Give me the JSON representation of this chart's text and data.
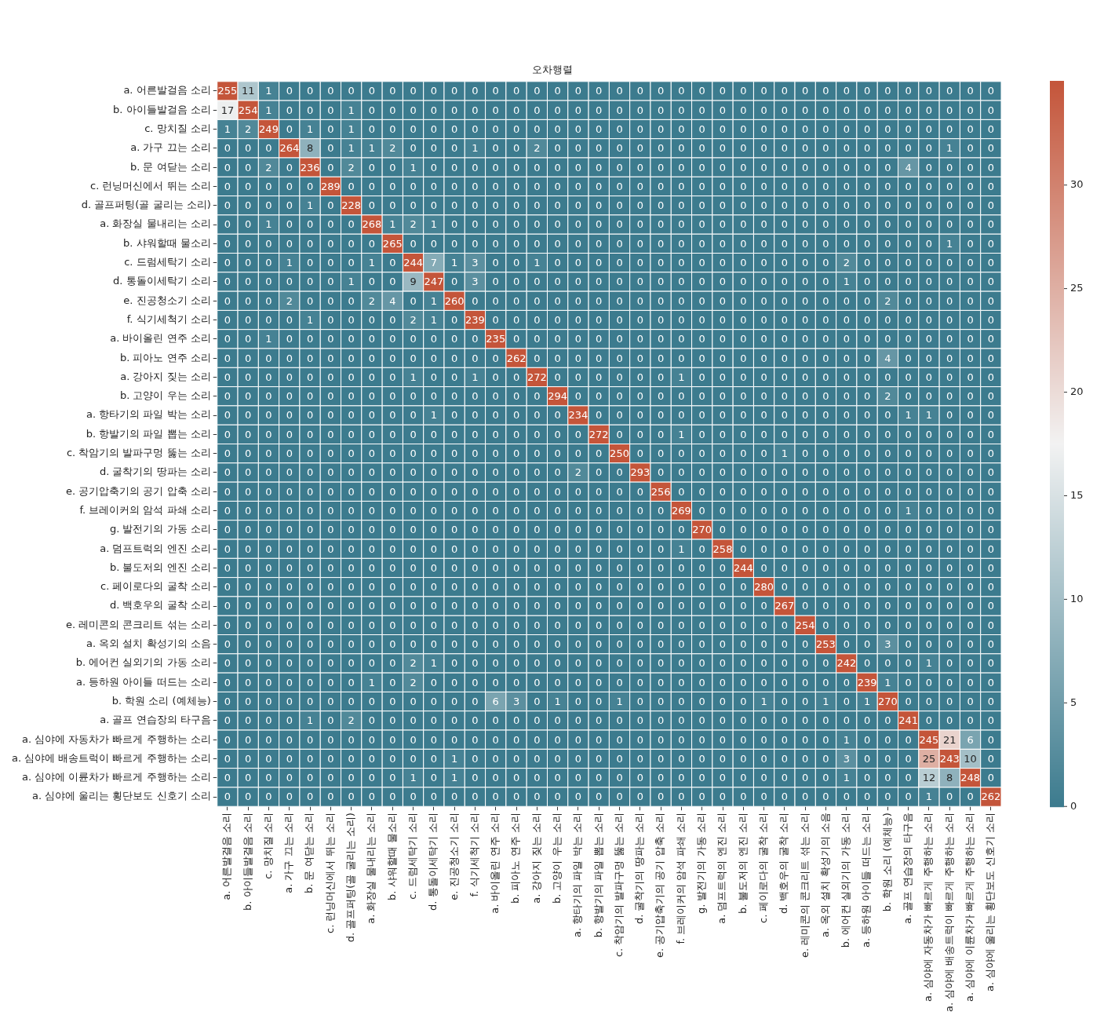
{
  "chart_data": {
    "type": "heatmap",
    "title": "오차행렬",
    "categories": [
      "a. 어른발걸음 소리",
      "b. 아이들발걸음 소리",
      "c. 망치질 소리",
      "a. 가구 끄는 소리",
      "b. 문 여닫는 소리",
      "c. 런닝머신에서 뛰는 소리",
      "d. 골프퍼팅(골 굴리는 소리)",
      "a. 화장실 물내리는 소리",
      "b. 샤워할때 물소리",
      "c. 드럼세탁기 소리",
      "d. 통돌이세탁기 소리",
      "e. 진공청소기 소리",
      "f. 식기세척기 소리",
      "a. 바이올린 연주 소리",
      "b. 피아노 연주 소리",
      "a. 강아지 짖는 소리",
      "b. 고양이 우는 소리",
      "a. 항타기의 파일 박는 소리",
      "b. 항발기의 파일 뽑는 소리",
      "c. 착암기의 발파구멍 뚫는 소리",
      "d. 굴착기의 땅파는 소리",
      "e. 공기압축기의 공기 압축 소리",
      "f. 브레이커의 암석 파쇄 소리",
      "g. 발전기의 가동 소리",
      "a. 덤프트럭의 엔진 소리",
      "b. 불도저의 엔진 소리",
      "c. 페이로다의 굴착 소리",
      "d. 백호우의 굴착 소리",
      "e. 레미콘의 콘크리트 섞는 소리",
      "a. 옥외 설치 확성기의 소음",
      "b. 에어컨 실외기의 가동 소리",
      "a. 등하원 아이들 떠드는 소리",
      "b. 학원 소리 (예체능)",
      "a. 골프 연습장의 타구음",
      "a. 심야에 자동차가 빠르게 주행하는 소리",
      "a. 심야에 배송트럭이 빠르게 주행하는 소리",
      "a. 심야에 이륜차가 빠르게 주행하는 소리",
      "a. 심야에 울리는 횡단보도 신호기 소리"
    ],
    "y_categories": [
      "a. 어른발걸음 소리",
      "b. 아이들발걸음 소리",
      "c. 망치질 소리",
      "a. 가구 끄는 소리",
      "b. 문 여닫는 소리",
      "c. 런닝머신에서 뛰는 소리",
      "d. 골프퍼팅(골 굴리는 소리)",
      "a. 화장실 물내리는 소리",
      "b. 샤워할때 물소리",
      "c. 드럼세탁기 소리",
      "d. 통돌이세탁기 소리",
      "e. 진공청소기 소리",
      "f. 식기세척기 소리",
      "a. 바이올린 연주 소리",
      "b. 피아노 연주 소리",
      "a. 강아지 짖는 소리",
      "b. 고양이 우는 소리",
      "a. 항타기의 파일 박는 소리",
      "b. 항발기의 파일 뽑는 소리",
      "c. 착암기의 발파구멍 뚫는 소리",
      "d. 굴착기의 땅파는 소리",
      "e. 공기압축기의 공기 압축 소리",
      "f. 브레이커의 암석 파쇄 소리",
      "g. 발전기의 가동 소리",
      "a. 덤프트럭의 엔진 소리",
      "b. 불도저의 엔진 소리",
      "c. 페이로다의 굴착 소리",
      "d. 백호우의 굴착 소리",
      "e. 레미콘의 콘크리트 섞는 소리",
      "a. 옥외 설치 확성기의 소음",
      "b. 에어컨 실외기의 가동 소리",
      "a. 등하원 아이들 떠드는 소리",
      "b. 학원 소리 (예체능)",
      "a. 골프 연습장의 타구음",
      "a. 심야에 자동차가 빠르게 주행하는 소리",
      "a. 심야에 배송트럭이 빠르게 주행하는 소리",
      "a. 심야에 이륜차가 빠르게 주행하는 소리",
      "a. 심야에 울리는 횡단보도 신호기 소리"
    ],
    "cells": [
      [
        255,
        11,
        1,
        0,
        0,
        0,
        0,
        0,
        0,
        0,
        0,
        0,
        0,
        0,
        0,
        0,
        0,
        0,
        0,
        0,
        0,
        0,
        0,
        0,
        0,
        0,
        0,
        0,
        0,
        0,
        0,
        0,
        0,
        0,
        0,
        0,
        0,
        0
      ],
      [
        17,
        254,
        1,
        0,
        0,
        0,
        1,
        0,
        0,
        0,
        0,
        0,
        0,
        0,
        0,
        0,
        0,
        0,
        0,
        0,
        0,
        0,
        0,
        0,
        0,
        0,
        0,
        0,
        0,
        0,
        0,
        0,
        0,
        0,
        0,
        0,
        0,
        0
      ],
      [
        1,
        2,
        249,
        0,
        1,
        0,
        1,
        0,
        0,
        0,
        0,
        0,
        0,
        0,
        0,
        0,
        0,
        0,
        0,
        0,
        0,
        0,
        0,
        0,
        0,
        0,
        0,
        0,
        0,
        0,
        0,
        0,
        0,
        0,
        0,
        0,
        0,
        0
      ],
      [
        0,
        0,
        0,
        264,
        8,
        0,
        1,
        1,
        2,
        0,
        0,
        0,
        1,
        0,
        0,
        2,
        0,
        0,
        0,
        0,
        0,
        0,
        0,
        0,
        0,
        0,
        0,
        0,
        0,
        0,
        0,
        0,
        0,
        0,
        0,
        1,
        0,
        0
      ],
      [
        0,
        0,
        2,
        0,
        236,
        0,
        2,
        0,
        0,
        1,
        0,
        0,
        0,
        0,
        0,
        0,
        0,
        0,
        0,
        0,
        0,
        0,
        0,
        0,
        0,
        0,
        0,
        0,
        0,
        0,
        0,
        0,
        0,
        4,
        0,
        0,
        0,
        0
      ],
      [
        0,
        0,
        0,
        0,
        0,
        289,
        0,
        0,
        0,
        0,
        0,
        0,
        0,
        0,
        0,
        0,
        0,
        0,
        0,
        0,
        0,
        0,
        0,
        0,
        0,
        0,
        0,
        0,
        0,
        0,
        0,
        0,
        0,
        0,
        0,
        0,
        0,
        0
      ],
      [
        0,
        0,
        0,
        0,
        1,
        0,
        228,
        0,
        0,
        0,
        0,
        0,
        0,
        0,
        0,
        0,
        0,
        0,
        0,
        0,
        0,
        0,
        0,
        0,
        0,
        0,
        0,
        0,
        0,
        0,
        0,
        0,
        0,
        0,
        0,
        0,
        0,
        0
      ],
      [
        0,
        0,
        1,
        0,
        0,
        0,
        0,
        268,
        1,
        2,
        1,
        0,
        0,
        0,
        0,
        0,
        0,
        0,
        0,
        0,
        0,
        0,
        0,
        0,
        0,
        0,
        0,
        0,
        0,
        0,
        0,
        0,
        0,
        0,
        0,
        0,
        0,
        0
      ],
      [
        0,
        0,
        0,
        0,
        0,
        0,
        0,
        0,
        265,
        0,
        0,
        0,
        0,
        0,
        0,
        0,
        0,
        0,
        0,
        0,
        0,
        0,
        0,
        0,
        0,
        0,
        0,
        0,
        0,
        0,
        0,
        0,
        0,
        0,
        0,
        1,
        0,
        0
      ],
      [
        0,
        0,
        0,
        1,
        0,
        0,
        0,
        1,
        0,
        244,
        7,
        1,
        3,
        0,
        0,
        1,
        0,
        0,
        0,
        0,
        0,
        0,
        0,
        0,
        0,
        0,
        0,
        0,
        0,
        0,
        2,
        0,
        0,
        0,
        0,
        0,
        0,
        0
      ],
      [
        0,
        0,
        0,
        0,
        0,
        0,
        1,
        0,
        0,
        9,
        247,
        0,
        3,
        0,
        0,
        0,
        0,
        0,
        0,
        0,
        0,
        0,
        0,
        0,
        0,
        0,
        0,
        0,
        0,
        0,
        1,
        0,
        0,
        0,
        0,
        0,
        0,
        0
      ],
      [
        0,
        0,
        0,
        2,
        0,
        0,
        0,
        2,
        4,
        0,
        1,
        260,
        0,
        0,
        0,
        0,
        0,
        0,
        0,
        0,
        0,
        0,
        0,
        0,
        0,
        0,
        0,
        0,
        0,
        0,
        0,
        0,
        2,
        0,
        0,
        0,
        0,
        0
      ],
      [
        0,
        0,
        0,
        0,
        1,
        0,
        0,
        0,
        0,
        2,
        1,
        0,
        239,
        0,
        0,
        0,
        0,
        0,
        0,
        0,
        0,
        0,
        0,
        0,
        0,
        0,
        0,
        0,
        0,
        0,
        0,
        0,
        0,
        0,
        0,
        0,
        0,
        0
      ],
      [
        0,
        0,
        1,
        0,
        0,
        0,
        0,
        0,
        0,
        0,
        0,
        0,
        0,
        235,
        0,
        0,
        0,
        0,
        0,
        0,
        0,
        0,
        0,
        0,
        0,
        0,
        0,
        0,
        0,
        0,
        0,
        0,
        0,
        0,
        0,
        0,
        0,
        0
      ],
      [
        0,
        0,
        0,
        0,
        0,
        0,
        0,
        0,
        0,
        0,
        0,
        0,
        0,
        0,
        262,
        0,
        0,
        0,
        0,
        0,
        0,
        0,
        0,
        0,
        0,
        0,
        0,
        0,
        0,
        0,
        0,
        0,
        4,
        0,
        0,
        0,
        0,
        0
      ],
      [
        0,
        0,
        0,
        0,
        0,
        0,
        0,
        0,
        0,
        1,
        0,
        0,
        1,
        0,
        0,
        272,
        0,
        0,
        0,
        0,
        0,
        0,
        1,
        0,
        0,
        0,
        0,
        0,
        0,
        0,
        0,
        0,
        0,
        0,
        0,
        0,
        0,
        0
      ],
      [
        0,
        0,
        0,
        0,
        0,
        0,
        0,
        0,
        0,
        0,
        0,
        0,
        0,
        0,
        0,
        0,
        294,
        0,
        0,
        0,
        0,
        0,
        0,
        0,
        0,
        0,
        0,
        0,
        0,
        0,
        0,
        0,
        2,
        0,
        0,
        0,
        0,
        0
      ],
      [
        0,
        0,
        0,
        0,
        0,
        0,
        0,
        0,
        0,
        0,
        1,
        0,
        0,
        0,
        0,
        0,
        0,
        234,
        0,
        0,
        0,
        0,
        0,
        0,
        0,
        0,
        0,
        0,
        0,
        0,
        0,
        0,
        0,
        1,
        1,
        0,
        0,
        0
      ],
      [
        0,
        0,
        0,
        0,
        0,
        0,
        0,
        0,
        0,
        0,
        0,
        0,
        0,
        0,
        0,
        0,
        0,
        0,
        272,
        0,
        0,
        0,
        1,
        0,
        0,
        0,
        0,
        0,
        0,
        0,
        0,
        0,
        0,
        0,
        0,
        0,
        0,
        0
      ],
      [
        0,
        0,
        0,
        0,
        0,
        0,
        0,
        0,
        0,
        0,
        0,
        0,
        0,
        0,
        0,
        0,
        0,
        0,
        0,
        250,
        0,
        0,
        0,
        0,
        0,
        0,
        0,
        1,
        0,
        0,
        0,
        0,
        0,
        0,
        0,
        0,
        0,
        0
      ],
      [
        0,
        0,
        0,
        0,
        0,
        0,
        0,
        0,
        0,
        0,
        0,
        0,
        0,
        0,
        0,
        0,
        0,
        2,
        0,
        0,
        293,
        0,
        0,
        0,
        0,
        0,
        0,
        0,
        0,
        0,
        0,
        0,
        0,
        0,
        0,
        0,
        0,
        0
      ],
      [
        0,
        0,
        0,
        0,
        0,
        0,
        0,
        0,
        0,
        0,
        0,
        0,
        0,
        0,
        0,
        0,
        0,
        0,
        0,
        0,
        0,
        256,
        0,
        0,
        0,
        0,
        0,
        0,
        0,
        0,
        0,
        0,
        0,
        0,
        0,
        0,
        0,
        0
      ],
      [
        0,
        0,
        0,
        0,
        0,
        0,
        0,
        0,
        0,
        0,
        0,
        0,
        0,
        0,
        0,
        0,
        0,
        0,
        0,
        0,
        0,
        0,
        269,
        0,
        0,
        0,
        0,
        0,
        0,
        0,
        0,
        0,
        0,
        1,
        0,
        0,
        0,
        0
      ],
      [
        0,
        0,
        0,
        0,
        0,
        0,
        0,
        0,
        0,
        0,
        0,
        0,
        0,
        0,
        0,
        0,
        0,
        0,
        0,
        0,
        0,
        0,
        0,
        270,
        0,
        0,
        0,
        0,
        0,
        0,
        0,
        0,
        0,
        0,
        0,
        0,
        0,
        0
      ],
      [
        0,
        0,
        0,
        0,
        0,
        0,
        0,
        0,
        0,
        0,
        0,
        0,
        0,
        0,
        0,
        0,
        0,
        0,
        0,
        0,
        0,
        0,
        1,
        0,
        258,
        0,
        0,
        0,
        0,
        0,
        0,
        0,
        0,
        0,
        0,
        0,
        0,
        0
      ],
      [
        0,
        0,
        0,
        0,
        0,
        0,
        0,
        0,
        0,
        0,
        0,
        0,
        0,
        0,
        0,
        0,
        0,
        0,
        0,
        0,
        0,
        0,
        0,
        0,
        0,
        244,
        0,
        0,
        0,
        0,
        0,
        0,
        0,
        0,
        0,
        0,
        0,
        0
      ],
      [
        0,
        0,
        0,
        0,
        0,
        0,
        0,
        0,
        0,
        0,
        0,
        0,
        0,
        0,
        0,
        0,
        0,
        0,
        0,
        0,
        0,
        0,
        0,
        0,
        0,
        0,
        280,
        0,
        0,
        0,
        0,
        0,
        0,
        0,
        0,
        0,
        0,
        0
      ],
      [
        0,
        0,
        0,
        0,
        0,
        0,
        0,
        0,
        0,
        0,
        0,
        0,
        0,
        0,
        0,
        0,
        0,
        0,
        0,
        0,
        0,
        0,
        0,
        0,
        0,
        0,
        0,
        267,
        0,
        0,
        0,
        0,
        0,
        0,
        0,
        0,
        0,
        0
      ],
      [
        0,
        0,
        0,
        0,
        0,
        0,
        0,
        0,
        0,
        0,
        0,
        0,
        0,
        0,
        0,
        0,
        0,
        0,
        0,
        0,
        0,
        0,
        0,
        0,
        0,
        0,
        0,
        0,
        254,
        0,
        0,
        0,
        0,
        0,
        0,
        0,
        0,
        0
      ],
      [
        0,
        0,
        0,
        0,
        0,
        0,
        0,
        0,
        0,
        0,
        0,
        0,
        0,
        0,
        0,
        0,
        0,
        0,
        0,
        0,
        0,
        0,
        0,
        0,
        0,
        0,
        0,
        0,
        0,
        253,
        0,
        0,
        3,
        0,
        0,
        0,
        0,
        0
      ],
      [
        0,
        0,
        0,
        0,
        0,
        0,
        0,
        0,
        0,
        2,
        1,
        0,
        0,
        0,
        0,
        0,
        0,
        0,
        0,
        0,
        0,
        0,
        0,
        0,
        0,
        0,
        0,
        0,
        0,
        0,
        242,
        0,
        0,
        0,
        1,
        0,
        0,
        0
      ],
      [
        0,
        0,
        0,
        0,
        0,
        0,
        0,
        1,
        0,
        2,
        0,
        0,
        0,
        0,
        0,
        0,
        0,
        0,
        0,
        0,
        0,
        0,
        0,
        0,
        0,
        0,
        0,
        0,
        0,
        0,
        0,
        239,
        1,
        0,
        0,
        0,
        0,
        0
      ],
      [
        0,
        0,
        0,
        0,
        0,
        0,
        0,
        0,
        0,
        0,
        0,
        0,
        0,
        6,
        3,
        0,
        1,
        0,
        0,
        1,
        0,
        0,
        0,
        0,
        0,
        0,
        1,
        0,
        0,
        1,
        0,
        1,
        270,
        0,
        0,
        0,
        0,
        0
      ],
      [
        0,
        0,
        0,
        0,
        1,
        0,
        2,
        0,
        0,
        0,
        0,
        0,
        0,
        0,
        0,
        0,
        0,
        0,
        0,
        0,
        0,
        0,
        0,
        0,
        0,
        0,
        0,
        0,
        0,
        0,
        0,
        0,
        0,
        241,
        0,
        0,
        0,
        0
      ],
      [
        0,
        0,
        0,
        0,
        0,
        0,
        0,
        0,
        0,
        0,
        0,
        0,
        0,
        0,
        0,
        0,
        0,
        0,
        0,
        0,
        0,
        0,
        0,
        0,
        0,
        0,
        0,
        0,
        0,
        0,
        1,
        0,
        0,
        0,
        245,
        21,
        6,
        0
      ],
      [
        0,
        0,
        0,
        0,
        0,
        0,
        0,
        0,
        0,
        0,
        0,
        1,
        0,
        0,
        0,
        0,
        0,
        0,
        0,
        0,
        0,
        0,
        0,
        0,
        0,
        0,
        0,
        0,
        0,
        0,
        3,
        0,
        0,
        0,
        25,
        243,
        10,
        0
      ],
      [
        0,
        0,
        0,
        0,
        0,
        0,
        0,
        0,
        0,
        1,
        0,
        1,
        0,
        0,
        0,
        0,
        0,
        0,
        0,
        0,
        0,
        0,
        0,
        0,
        0,
        0,
        0,
        0,
        0,
        0,
        1,
        0,
        0,
        0,
        12,
        8,
        248,
        0
      ],
      [
        0,
        0,
        0,
        0,
        0,
        0,
        0,
        0,
        0,
        0,
        0,
        0,
        0,
        0,
        0,
        0,
        0,
        0,
        0,
        0,
        0,
        0,
        0,
        0,
        0,
        0,
        0,
        0,
        0,
        0,
        0,
        0,
        0,
        0,
        1,
        0,
        0,
        262
      ]
    ],
    "colors": [
      "#3c7b8e",
      "#f2f2f2",
      "#c4553a"
    ],
    "clim": [
      0,
      35
    ],
    "cticks": [
      0,
      5,
      10,
      15,
      20,
      25,
      30
    ],
    "data_labels": true
  }
}
